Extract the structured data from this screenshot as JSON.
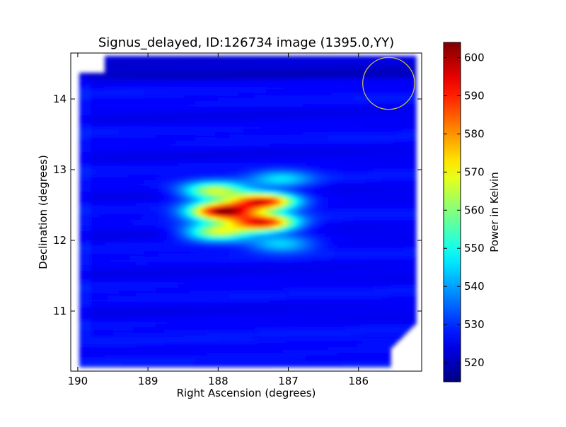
{
  "chart_data": {
    "type": "heatmap",
    "title": "Signus_delayed, ID:126734 image (1395.0,YY)",
    "xlabel": "Right Ascension (degrees)",
    "ylabel": "Declination (degrees)",
    "x_ticks": [
      {
        "value": 190,
        "label": "190"
      },
      {
        "value": 189,
        "label": "189"
      },
      {
        "value": 188,
        "label": "188"
      },
      {
        "value": 187,
        "label": "187"
      },
      {
        "value": 186,
        "label": "186"
      }
    ],
    "y_ticks": [
      {
        "value": 11,
        "label": "11"
      },
      {
        "value": 12,
        "label": "12"
      },
      {
        "value": 13,
        "label": "13"
      },
      {
        "value": 14,
        "label": "14"
      }
    ],
    "xlim": [
      190.1,
      185.1
    ],
    "ylim": [
      10.15,
      14.65
    ],
    "x_inverted": true,
    "colormap": "jet",
    "colorbar": {
      "label": "Power in Kelvin",
      "range": [
        515,
        604
      ],
      "ticks": [
        {
          "value": 520,
          "label": "520"
        },
        {
          "value": 530,
          "label": "530"
        },
        {
          "value": 540,
          "label": "540"
        },
        {
          "value": 550,
          "label": "550"
        },
        {
          "value": 560,
          "label": "560"
        },
        {
          "value": 570,
          "label": "570"
        },
        {
          "value": 580,
          "label": "580"
        },
        {
          "value": 590,
          "label": "590"
        },
        {
          "value": 600,
          "label": "600"
        }
      ]
    },
    "background_level": 526,
    "sources": [
      {
        "ra": 187.95,
        "dec": 12.41,
        "peak": 600
      },
      {
        "ra": 187.35,
        "dec": 12.55,
        "peak": 593
      },
      {
        "ra": 187.35,
        "dec": 12.25,
        "peak": 592
      },
      {
        "ra": 188.05,
        "dec": 12.7,
        "peak": 568
      },
      {
        "ra": 188.0,
        "dec": 12.12,
        "peak": 568
      },
      {
        "ra": 187.1,
        "dec": 12.87,
        "peak": 545
      },
      {
        "ra": 187.1,
        "dec": 11.95,
        "peak": 545
      }
    ],
    "beam_circle": {
      "ra": 185.57,
      "dec": 14.22,
      "radius_deg": 0.37,
      "color": "#d6c84a"
    },
    "grid": false
  }
}
